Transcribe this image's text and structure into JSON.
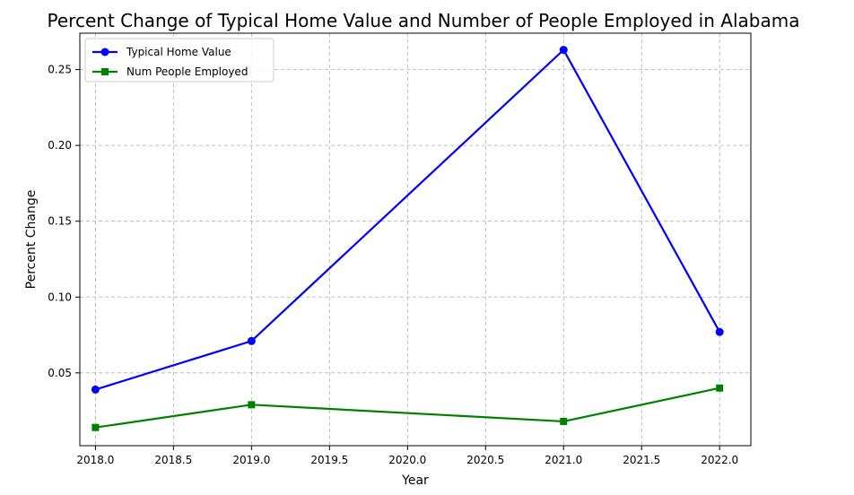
{
  "chart_data": {
    "type": "line",
    "title": "Percent Change of Typical Home Value and Number of People Employed in Alabama",
    "xlabel": "Year",
    "ylabel": "Percent Change",
    "xlim": [
      2017.9,
      2022.2
    ],
    "ylim": [
      0.002,
      0.274
    ],
    "xticks": [
      "2018.0",
      "2018.5",
      "2019.0",
      "2019.5",
      "2020.0",
      "2020.5",
      "2021.0",
      "2021.5",
      "2022.0"
    ],
    "xtick_values": [
      2018.0,
      2018.5,
      2019.0,
      2019.5,
      2020.0,
      2020.5,
      2021.0,
      2021.5,
      2022.0
    ],
    "yticks": [
      "0.05",
      "0.10",
      "0.15",
      "0.20",
      "0.25"
    ],
    "ytick_values": [
      0.05,
      0.1,
      0.15,
      0.2,
      0.25
    ],
    "grid": true,
    "legend_position": "top-left",
    "series": [
      {
        "name": "Typical Home Value",
        "color": "#0000ff",
        "marker": "circle",
        "x": [
          2018,
          2019,
          2021,
          2022
        ],
        "y": [
          0.039,
          0.071,
          0.263,
          0.077
        ]
      },
      {
        "name": "Num People Employed",
        "color": "#008000",
        "marker": "square",
        "x": [
          2018,
          2019,
          2021,
          2022
        ],
        "y": [
          0.014,
          0.029,
          0.018,
          0.04
        ]
      }
    ]
  }
}
